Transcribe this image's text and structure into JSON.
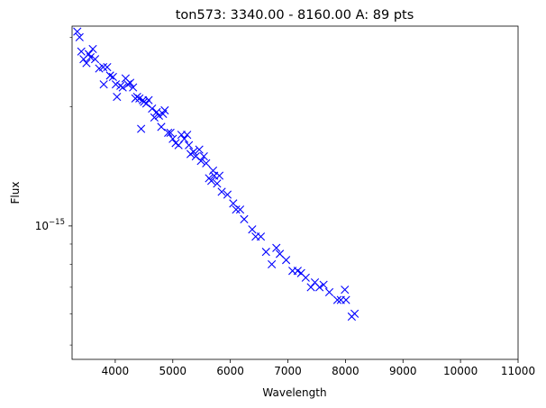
{
  "chart_data": {
    "type": "scatter",
    "title": "ton573: 3340.00 - 8160.00 A: 89 pts",
    "xlabel": "Wavelength",
    "ylabel": "Flux",
    "xlim": [
      3250,
      11000
    ],
    "ylim": [
      4.6e-16,
      3.2e-15
    ],
    "yscale": "log",
    "grid": false,
    "marker": "x",
    "marker_color": "#0000ff",
    "x_ticks": [
      4000,
      5000,
      6000,
      7000,
      8000,
      9000,
      10000,
      11000
    ],
    "x_tick_labels": [
      "4000",
      "5000",
      "6000",
      "7000",
      "8000",
      "9000",
      "10000",
      "11000"
    ],
    "y_major_tick": {
      "value": 1e-15,
      "base": "10",
      "exponent": "−15"
    },
    "y_minor_ticks": [
      5e-16,
      6e-16,
      7e-16,
      8e-16,
      9e-16,
      2e-15,
      3e-15
    ],
    "series": [
      {
        "values": [
          [
            3340,
            3.1e-15
          ],
          [
            3380,
            3e-15
          ],
          [
            3410,
            2.76e-15
          ],
          [
            3450,
            2.64e-15
          ],
          [
            3500,
            2.58e-15
          ],
          [
            3540,
            2.72e-15
          ],
          [
            3570,
            2.67e-15
          ],
          [
            3610,
            2.8e-15
          ],
          [
            3650,
            2.64e-15
          ],
          [
            3720,
            2.5e-15
          ],
          [
            3790,
            2.52e-15
          ],
          [
            3800,
            2.28e-15
          ],
          [
            3860,
            2.52e-15
          ],
          [
            3910,
            2.4e-15
          ],
          [
            3960,
            2.38e-15
          ],
          [
            4010,
            2.28e-15
          ],
          [
            4030,
            2.12e-15
          ],
          [
            4090,
            2.26e-15
          ],
          [
            4130,
            2.24e-15
          ],
          [
            4180,
            2.36e-15
          ],
          [
            4220,
            2.28e-15
          ],
          [
            4260,
            2.3e-15
          ],
          [
            4310,
            2.24e-15
          ],
          [
            4350,
            2.1e-15
          ],
          [
            4380,
            2.12e-15
          ],
          [
            4420,
            2.1e-15
          ],
          [
            4450,
            1.76e-15
          ],
          [
            4480,
            2.08e-15
          ],
          [
            4500,
            2.06e-15
          ],
          [
            4540,
            2.04e-15
          ],
          [
            4580,
            2.08e-15
          ],
          [
            4640,
            1.98e-15
          ],
          [
            4680,
            1.88e-15
          ],
          [
            4720,
            1.94e-15
          ],
          [
            4760,
            1.9e-15
          ],
          [
            4800,
            1.78e-15
          ],
          [
            4830,
            1.92e-15
          ],
          [
            4860,
            1.96e-15
          ],
          [
            4920,
            1.72e-15
          ],
          [
            4960,
            1.72e-15
          ],
          [
            5000,
            1.66e-15
          ],
          [
            5050,
            1.62e-15
          ],
          [
            5100,
            1.6e-15
          ],
          [
            5150,
            1.7e-15
          ],
          [
            5200,
            1.66e-15
          ],
          [
            5250,
            1.7e-15
          ],
          [
            5280,
            1.6e-15
          ],
          [
            5310,
            1.52e-15
          ],
          [
            5360,
            1.54e-15
          ],
          [
            5400,
            1.5e-15
          ],
          [
            5460,
            1.56e-15
          ],
          [
            5490,
            1.46e-15
          ],
          [
            5540,
            1.5e-15
          ],
          [
            5580,
            1.44e-15
          ],
          [
            5630,
            1.32e-15
          ],
          [
            5670,
            1.3e-15
          ],
          [
            5700,
            1.38e-15
          ],
          [
            5720,
            1.34e-15
          ],
          [
            5770,
            1.28e-15
          ],
          [
            5810,
            1.34e-15
          ],
          [
            5850,
            1.22e-15
          ],
          [
            5950,
            1.2e-15
          ],
          [
            6050,
            1.14e-15
          ],
          [
            6100,
            1.1e-15
          ],
          [
            6170,
            1.1e-15
          ],
          [
            6240,
            1.04e-15
          ],
          [
            6380,
            9.8e-16
          ],
          [
            6440,
            9.4e-16
          ],
          [
            6530,
            9.4e-16
          ],
          [
            6620,
            8.6e-16
          ],
          [
            6720,
            8e-16
          ],
          [
            6800,
            8.8e-16
          ],
          [
            6860,
            8.5e-16
          ],
          [
            6970,
            8.2e-16
          ],
          [
            7080,
            7.7e-16
          ],
          [
            7170,
            7.7e-16
          ],
          [
            7230,
            7.6e-16
          ],
          [
            7310,
            7.4e-16
          ],
          [
            7400,
            7e-16
          ],
          [
            7470,
            7.2e-16
          ],
          [
            7550,
            7e-16
          ],
          [
            7620,
            7.1e-16
          ],
          [
            7720,
            6.8e-16
          ],
          [
            7860,
            6.5e-16
          ],
          [
            7920,
            6.5e-16
          ],
          [
            7990,
            6.9e-16
          ],
          [
            8010,
            6.5e-16
          ],
          [
            8110,
            5.9e-16
          ],
          [
            8160,
            6e-16
          ]
        ]
      }
    ]
  }
}
